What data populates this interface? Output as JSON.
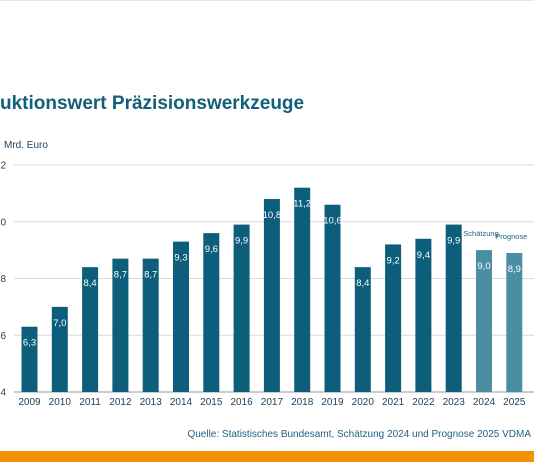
{
  "title": "uktionswert Präzisionswerkzeuge",
  "ylabel": "Mrd. Euro",
  "source": "Quelle: Statistisches Bundesamt, Schätzung 2024 und Prognose 2025 VDMA",
  "colors": {
    "bar": "#0c5e7b",
    "bar_estimate": "#4a8ea3",
    "grid": "#d9d9d9",
    "accent": "#f39200"
  },
  "chart_data": {
    "type": "bar",
    "title": "uktionswert Präzisionswerkzeuge",
    "ylabel": "Mrd. Euro",
    "xlabel": "",
    "ylim": [
      4,
      12
    ],
    "yticks": [
      "4",
      "6",
      "8",
      "0",
      "2"
    ],
    "grid": true,
    "categories": [
      "2009",
      "2010",
      "2011",
      "2012",
      "2013",
      "2014",
      "2015",
      "2016",
      "2017",
      "2018",
      "2019",
      "2020",
      "2021",
      "2022",
      "2023",
      "2024",
      "2025"
    ],
    "values": [
      6.3,
      7.0,
      8.4,
      8.7,
      8.7,
      9.3,
      9.6,
      9.9,
      10.8,
      11.2,
      10.6,
      8.4,
      9.2,
      9.4,
      9.9,
      9.0,
      8.9
    ],
    "labels": [
      "6,3",
      "7,0",
      "8,4",
      "8,7",
      "8,7",
      "9,3",
      "9,6",
      "9,9",
      "10,8",
      "11,2",
      "10,6",
      "8,4",
      "9,2",
      "9,4",
      "9,9",
      "9,0",
      "8,9"
    ],
    "estimate_flags": [
      false,
      false,
      false,
      false,
      false,
      false,
      false,
      false,
      false,
      false,
      false,
      false,
      false,
      false,
      false,
      true,
      true
    ],
    "annotations": [
      {
        "category": "2024",
        "text": "Schätzung"
      },
      {
        "category": "2025",
        "text": "Prognose"
      }
    ]
  }
}
